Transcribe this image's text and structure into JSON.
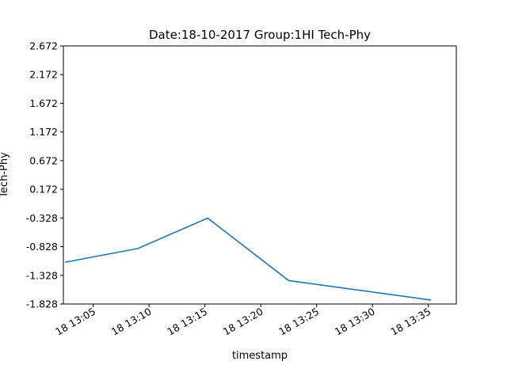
{
  "chart_data": {
    "type": "line",
    "title": "Date:18-10-2017 Group:1HI Tech-Phy",
    "xlabel": "timestamp",
    "ylabel": "Tech-Phy",
    "x_tick_labels": [
      "18 13:05",
      "18 13:10",
      "18 13:15",
      "18 13:20",
      "18 13:25",
      "18 13:30",
      "18 13:35"
    ],
    "x_tick_values": [
      "2017-10-18 13:05",
      "2017-10-18 13:10",
      "2017-10-18 13:15",
      "2017-10-18 13:20",
      "2017-10-18 13:25",
      "2017-10-18 13:30",
      "2017-10-18 13:35"
    ],
    "xlim": [
      "2017-10-18 13:02:20",
      "2017-10-18 13:37:30"
    ],
    "y_tick_labels": [
      "2.672",
      "2.172",
      "1.672",
      "1.172",
      "0.672",
      "0.172",
      "-0.328",
      "-0.828",
      "-1.328",
      "-1.828"
    ],
    "ylim": [
      -1.828,
      2.672
    ],
    "grid": false,
    "series": [
      {
        "color": "#1f77b4",
        "x": [
          "2017-10-18 13:02:30",
          "2017-10-18 13:09:00",
          "2017-10-18 13:15:15",
          "2017-10-18 13:22:30",
          "2017-10-18 13:35:15"
        ],
        "values": [
          -1.1,
          -0.86,
          -0.33,
          -1.42,
          -1.76
        ]
      }
    ]
  }
}
